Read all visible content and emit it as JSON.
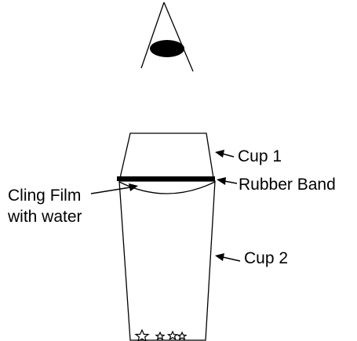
{
  "labels": {
    "cup1": "Cup 1",
    "rubber_band": "Rubber Band",
    "cling_film_line1": "Cling Film",
    "cling_film_line2": "with water",
    "cup2": "Cup 2"
  },
  "colors": {
    "line": "#000000",
    "background": "#ffffff"
  },
  "icons": {
    "eye": "eye-icon",
    "stars": "star-icon"
  }
}
